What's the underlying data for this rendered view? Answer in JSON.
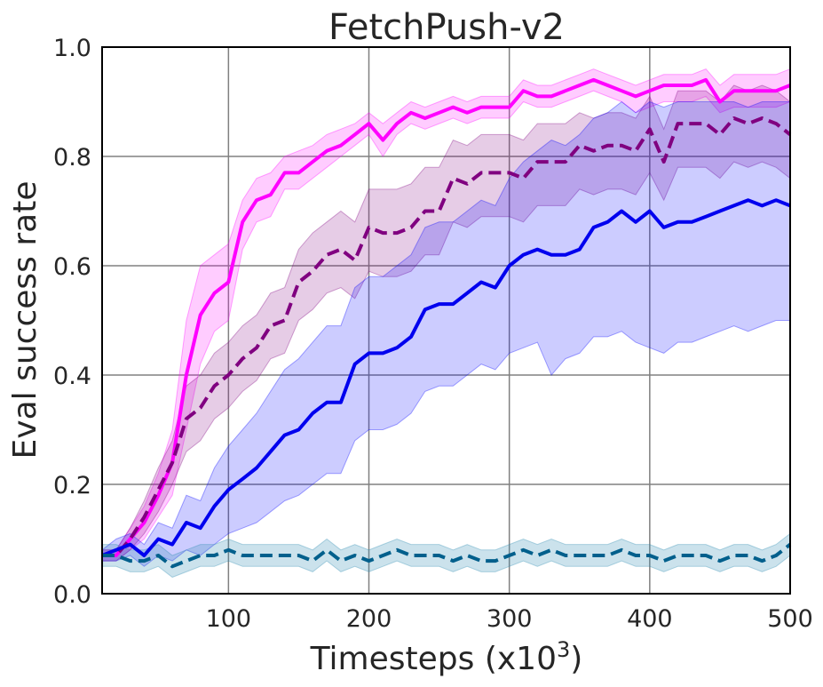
{
  "chart_data": {
    "type": "line",
    "title": "FetchPush-v2",
    "xlabel": "Timesteps (x10",
    "xlabel_sup": "3",
    "xlabel_close": ")",
    "ylabel": "Eval success rate",
    "xlim": [
      10,
      500
    ],
    "ylim": [
      0,
      1
    ],
    "xticks": [
      100,
      200,
      300,
      400,
      500
    ],
    "yticks": [
      0.0,
      0.2,
      0.4,
      0.6,
      0.8,
      1.0
    ],
    "xtick_labels": [
      "100",
      "200",
      "300",
      "400",
      "500"
    ],
    "ytick_labels": [
      "0.0",
      "0.2",
      "0.4",
      "0.6",
      "0.8",
      "1.0"
    ],
    "grid": true,
    "x": [
      10,
      20,
      30,
      40,
      50,
      60,
      70,
      80,
      90,
      100,
      110,
      120,
      130,
      140,
      150,
      160,
      170,
      180,
      190,
      200,
      210,
      220,
      230,
      240,
      250,
      260,
      270,
      280,
      290,
      300,
      310,
      320,
      330,
      340,
      350,
      360,
      370,
      380,
      390,
      400,
      410,
      420,
      430,
      440,
      450,
      460,
      470,
      480,
      490,
      500
    ],
    "series": [
      {
        "color": "#ff00ff",
        "band_color": "#ff00ff",
        "band_opacity": 0.2,
        "dash": "solid",
        "mean": [
          0.07,
          0.07,
          0.1,
          0.13,
          0.18,
          0.24,
          0.4,
          0.51,
          0.55,
          0.57,
          0.68,
          0.72,
          0.73,
          0.77,
          0.77,
          0.79,
          0.81,
          0.82,
          0.84,
          0.86,
          0.83,
          0.86,
          0.88,
          0.87,
          0.88,
          0.89,
          0.88,
          0.89,
          0.89,
          0.89,
          0.92,
          0.91,
          0.91,
          0.92,
          0.93,
          0.94,
          0.93,
          0.92,
          0.91,
          0.92,
          0.93,
          0.93,
          0.93,
          0.94,
          0.9,
          0.92,
          0.92,
          0.92,
          0.92,
          0.93
        ],
        "lower": [
          0.06,
          0.06,
          0.08,
          0.1,
          0.14,
          0.18,
          0.3,
          0.42,
          0.48,
          0.5,
          0.63,
          0.68,
          0.69,
          0.74,
          0.74,
          0.76,
          0.78,
          0.8,
          0.82,
          0.84,
          0.8,
          0.84,
          0.86,
          0.85,
          0.86,
          0.87,
          0.86,
          0.87,
          0.87,
          0.87,
          0.9,
          0.89,
          0.89,
          0.9,
          0.91,
          0.92,
          0.91,
          0.9,
          0.88,
          0.89,
          0.9,
          0.9,
          0.9,
          0.91,
          0.88,
          0.89,
          0.89,
          0.89,
          0.89,
          0.9
        ],
        "upper": [
          0.08,
          0.08,
          0.12,
          0.16,
          0.22,
          0.3,
          0.5,
          0.6,
          0.62,
          0.64,
          0.72,
          0.76,
          0.77,
          0.8,
          0.81,
          0.82,
          0.84,
          0.85,
          0.86,
          0.88,
          0.86,
          0.88,
          0.9,
          0.89,
          0.9,
          0.91,
          0.9,
          0.91,
          0.91,
          0.91,
          0.94,
          0.93,
          0.93,
          0.94,
          0.95,
          0.96,
          0.95,
          0.94,
          0.93,
          0.94,
          0.95,
          0.95,
          0.95,
          0.96,
          0.93,
          0.95,
          0.95,
          0.95,
          0.95,
          0.96
        ]
      },
      {
        "color": "#800080",
        "band_color": "#800080",
        "band_opacity": 0.2,
        "dash": "dashed",
        "mean": [
          0.07,
          0.07,
          0.1,
          0.14,
          0.19,
          0.24,
          0.32,
          0.34,
          0.38,
          0.4,
          0.43,
          0.45,
          0.49,
          0.5,
          0.57,
          0.59,
          0.62,
          0.63,
          0.61,
          0.67,
          0.66,
          0.66,
          0.67,
          0.7,
          0.7,
          0.76,
          0.75,
          0.77,
          0.77,
          0.77,
          0.76,
          0.79,
          0.79,
          0.79,
          0.82,
          0.81,
          0.82,
          0.82,
          0.81,
          0.85,
          0.79,
          0.86,
          0.86,
          0.86,
          0.84,
          0.87,
          0.86,
          0.87,
          0.86,
          0.84
        ],
        "lower": [
          0.06,
          0.06,
          0.08,
          0.11,
          0.15,
          0.2,
          0.26,
          0.28,
          0.32,
          0.34,
          0.37,
          0.39,
          0.43,
          0.44,
          0.5,
          0.52,
          0.55,
          0.56,
          0.54,
          0.59,
          0.58,
          0.58,
          0.59,
          0.62,
          0.62,
          0.68,
          0.67,
          0.69,
          0.69,
          0.69,
          0.68,
          0.71,
          0.71,
          0.71,
          0.74,
          0.73,
          0.74,
          0.74,
          0.73,
          0.77,
          0.72,
          0.78,
          0.78,
          0.78,
          0.76,
          0.79,
          0.78,
          0.79,
          0.78,
          0.76
        ],
        "upper": [
          0.08,
          0.08,
          0.12,
          0.17,
          0.23,
          0.28,
          0.38,
          0.4,
          0.44,
          0.46,
          0.49,
          0.51,
          0.55,
          0.56,
          0.63,
          0.66,
          0.68,
          0.7,
          0.68,
          0.74,
          0.74,
          0.74,
          0.75,
          0.78,
          0.78,
          0.83,
          0.82,
          0.84,
          0.84,
          0.84,
          0.83,
          0.86,
          0.86,
          0.86,
          0.88,
          0.87,
          0.88,
          0.88,
          0.87,
          0.91,
          0.85,
          0.92,
          0.92,
          0.92,
          0.9,
          0.93,
          0.92,
          0.93,
          0.92,
          0.9
        ]
      },
      {
        "color": "#0000ee",
        "band_color": "#0000ff",
        "band_opacity": 0.2,
        "dash": "solid",
        "mean": [
          0.07,
          0.08,
          0.09,
          0.07,
          0.1,
          0.09,
          0.13,
          0.12,
          0.16,
          0.19,
          0.21,
          0.23,
          0.26,
          0.29,
          0.3,
          0.33,
          0.35,
          0.35,
          0.42,
          0.44,
          0.44,
          0.45,
          0.47,
          0.52,
          0.53,
          0.53,
          0.55,
          0.57,
          0.56,
          0.6,
          0.62,
          0.63,
          0.62,
          0.62,
          0.63,
          0.67,
          0.68,
          0.7,
          0.68,
          0.7,
          0.67,
          0.68,
          0.68,
          0.69,
          0.7,
          0.71,
          0.72,
          0.71,
          0.72,
          0.71
        ],
        "lower": [
          0.06,
          0.06,
          0.07,
          0.05,
          0.07,
          0.06,
          0.08,
          0.07,
          0.09,
          0.11,
          0.12,
          0.13,
          0.15,
          0.17,
          0.18,
          0.2,
          0.22,
          0.22,
          0.28,
          0.3,
          0.3,
          0.31,
          0.33,
          0.37,
          0.38,
          0.38,
          0.4,
          0.42,
          0.41,
          0.44,
          0.45,
          0.46,
          0.4,
          0.43,
          0.44,
          0.47,
          0.47,
          0.48,
          0.46,
          0.45,
          0.44,
          0.46,
          0.46,
          0.47,
          0.48,
          0.49,
          0.48,
          0.49,
          0.5,
          0.5
        ],
        "upper": [
          0.08,
          0.1,
          0.11,
          0.09,
          0.13,
          0.12,
          0.18,
          0.17,
          0.23,
          0.27,
          0.3,
          0.33,
          0.37,
          0.41,
          0.43,
          0.46,
          0.49,
          0.49,
          0.56,
          0.58,
          0.58,
          0.6,
          0.62,
          0.67,
          0.68,
          0.68,
          0.7,
          0.72,
          0.71,
          0.76,
          0.79,
          0.81,
          0.83,
          0.82,
          0.84,
          0.87,
          0.88,
          0.9,
          0.88,
          0.9,
          0.89,
          0.9,
          0.9,
          0.9,
          0.9,
          0.9,
          0.89,
          0.9,
          0.9,
          0.9
        ]
      },
      {
        "color": "#005f8c",
        "band_color": "#2e8bb3",
        "band_opacity": 0.25,
        "dash": "dashed",
        "mean": [
          0.07,
          0.07,
          0.06,
          0.06,
          0.07,
          0.05,
          0.06,
          0.07,
          0.07,
          0.08,
          0.07,
          0.07,
          0.07,
          0.07,
          0.07,
          0.06,
          0.08,
          0.06,
          0.07,
          0.06,
          0.07,
          0.08,
          0.07,
          0.07,
          0.07,
          0.06,
          0.07,
          0.06,
          0.06,
          0.07,
          0.08,
          0.07,
          0.08,
          0.07,
          0.07,
          0.07,
          0.07,
          0.08,
          0.07,
          0.07,
          0.06,
          0.07,
          0.07,
          0.07,
          0.06,
          0.07,
          0.07,
          0.06,
          0.07,
          0.09
        ],
        "lower": [
          0.05,
          0.05,
          0.04,
          0.04,
          0.05,
          0.03,
          0.04,
          0.05,
          0.05,
          0.06,
          0.05,
          0.05,
          0.05,
          0.05,
          0.05,
          0.04,
          0.06,
          0.04,
          0.05,
          0.04,
          0.05,
          0.06,
          0.05,
          0.05,
          0.05,
          0.04,
          0.05,
          0.04,
          0.04,
          0.05,
          0.06,
          0.05,
          0.06,
          0.05,
          0.05,
          0.05,
          0.05,
          0.06,
          0.05,
          0.05,
          0.04,
          0.05,
          0.05,
          0.05,
          0.04,
          0.05,
          0.05,
          0.04,
          0.05,
          0.07
        ],
        "upper": [
          0.09,
          0.09,
          0.08,
          0.08,
          0.09,
          0.07,
          0.08,
          0.09,
          0.09,
          0.1,
          0.09,
          0.09,
          0.09,
          0.09,
          0.09,
          0.08,
          0.1,
          0.08,
          0.09,
          0.08,
          0.09,
          0.1,
          0.09,
          0.09,
          0.09,
          0.08,
          0.09,
          0.08,
          0.08,
          0.09,
          0.1,
          0.09,
          0.1,
          0.09,
          0.09,
          0.09,
          0.09,
          0.1,
          0.09,
          0.09,
          0.08,
          0.09,
          0.09,
          0.09,
          0.08,
          0.09,
          0.09,
          0.08,
          0.09,
          0.11
        ]
      }
    ]
  }
}
